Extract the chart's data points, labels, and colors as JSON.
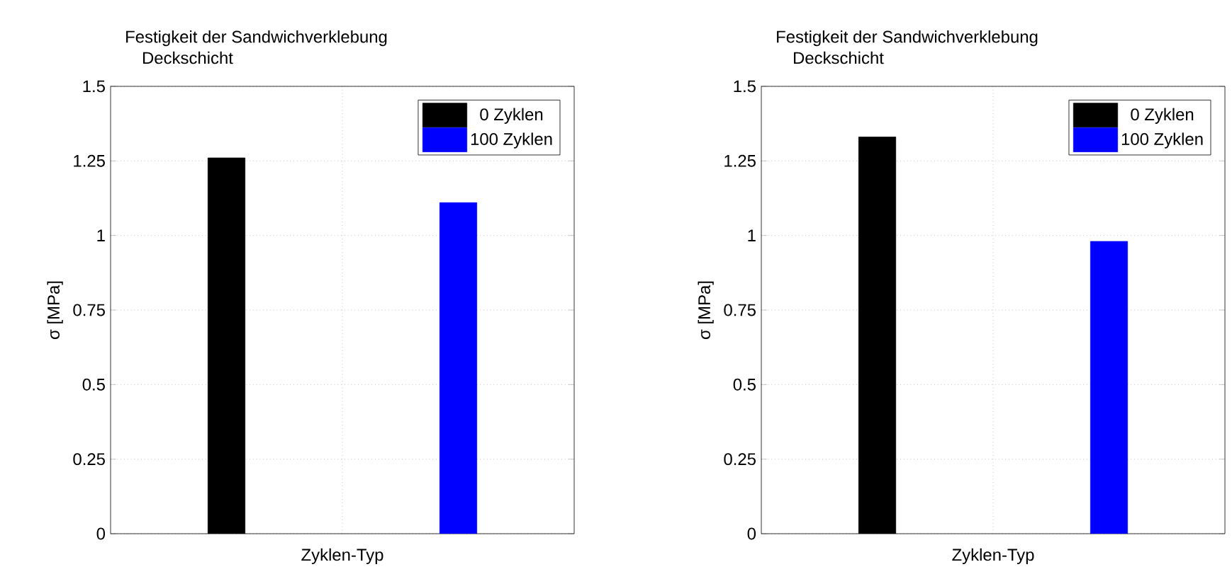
{
  "chart_data": [
    {
      "type": "bar",
      "title": "Festigkeit der Sandwichverklebung",
      "subtitle": "Deckschicht",
      "xlabel": "Zyklen-Typ",
      "ylabel": "σ [MPa]",
      "categories": [
        null
      ],
      "series": [
        {
          "name": "0 Zyklen",
          "color": "#000000",
          "values": [
            1.26
          ]
        },
        {
          "name": "100 Zyklen",
          "color": "#0000ff",
          "values": [
            1.11
          ]
        }
      ],
      "ylim": [
        0,
        1.5
      ],
      "yticks": [
        0,
        0.25,
        0.5,
        0.75,
        1,
        1.25,
        1.5
      ],
      "grid": true,
      "legend": "top right",
      "tick_labels": "y"
    },
    {
      "type": "bar",
      "title": "Festigkeit der Sandwichverklebung",
      "subtitle": "Deckschicht",
      "xlabel": "Zyklen-Typ",
      "ylabel": "σ [MPa]",
      "categories": [
        null
      ],
      "series": [
        {
          "name": "0 Zyklen",
          "color": "#000000",
          "values": [
            1.33
          ]
        },
        {
          "name": "100 Zyklen",
          "color": "#0000ff",
          "values": [
            0.98
          ]
        }
      ],
      "ylim": [
        0,
        1.5
      ],
      "yticks": [
        0,
        0.25,
        0.5,
        0.75,
        1,
        1.25,
        1.5
      ],
      "grid": true,
      "legend": "top right",
      "tick_labels": "y"
    }
  ]
}
